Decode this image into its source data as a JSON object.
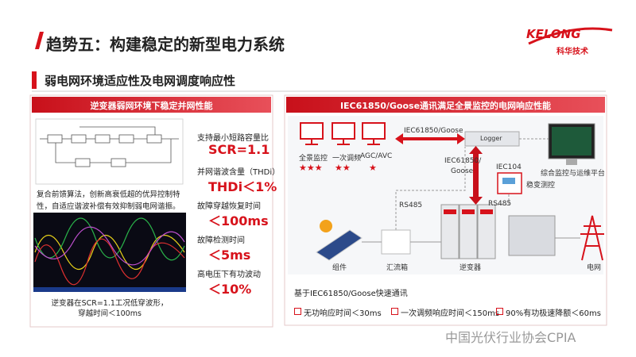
{
  "header": {
    "title": "趋势五：构建稳定的新型电力系统",
    "logo_en": "KELONG",
    "logo_cn": "科华技术"
  },
  "section": {
    "title": "弱电网环境适应性及电网调度响应性"
  },
  "left_panel": {
    "header": "逆变器弱网环境下稳定并网性能",
    "description": "复合前馈算法，创新高衰低超的优异控制特性，自适应谐波补偿有效抑制弱电网谐振。",
    "caption": [
      "逆变器在SCR=1.1工况低穿波形，",
      "穿越时间＜100ms"
    ],
    "metrics": [
      {
        "label": "支持最小短路容量比",
        "value": "SCR=1.1"
      },
      {
        "label": "并网谐波含量（THDi）",
        "value": "THDi＜1%"
      },
      {
        "label": "故障穿越恢复时间",
        "value": "＜100ms"
      },
      {
        "label": "故障检测时间",
        "value": "＜5ms"
      },
      {
        "label": "高电压下有功波动",
        "value": "＜10%"
      }
    ]
  },
  "right_panel": {
    "header": "IEC61850/Goose通讯满足全景监控的电网响应性能",
    "labels": [
      {
        "text": "全景监控"
      },
      {
        "text": "一次调频"
      },
      {
        "text": "AGC/AVC"
      },
      {
        "text": "★★★"
      },
      {
        "text": "★★"
      },
      {
        "text": "★"
      },
      {
        "text": "IEC61850/Goose"
      },
      {
        "text": "Logger"
      },
      {
        "text": "综合监控与运维平台"
      },
      {
        "text": "IEC61850/"
      },
      {
        "text": "Goose"
      },
      {
        "text": "IEC104"
      },
      {
        "text": "稳变测控"
      },
      {
        "text": "RS485"
      },
      {
        "text": "RS485"
      },
      {
        "text": "组件"
      },
      {
        "text": "汇流箱"
      },
      {
        "text": "逆变器"
      },
      {
        "text": "电网"
      }
    ],
    "footer": "基于IEC61850/Goose快速通讯",
    "bullets": [
      "无功响应时间＜30ms",
      "一次调频响应时间＜150ms",
      "90%有功极速降额＜60ms"
    ]
  },
  "watermark": "中国光伏行业协会CPIA"
}
